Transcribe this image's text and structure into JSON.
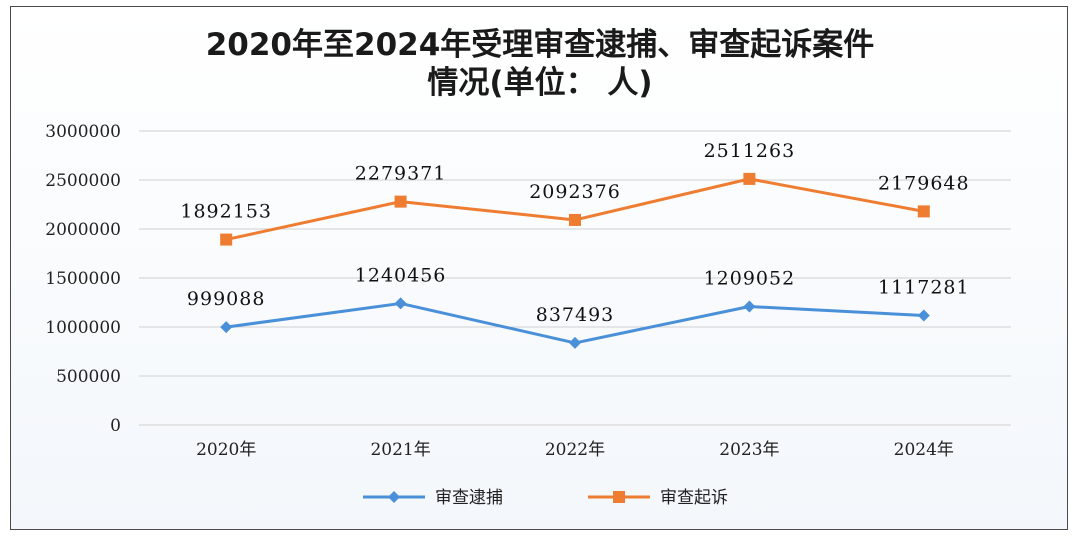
{
  "chart_data": {
    "type": "line",
    "title_lines": [
      "2020年至2024年受理审查逮捕、审查起诉案件",
      "情况(单位： 人)"
    ],
    "categories": [
      "2020年",
      "2021年",
      "2022年",
      "2023年",
      "2024年"
    ],
    "ylim": [
      0,
      3000000
    ],
    "yticks": [
      "0",
      "500000",
      "1000000",
      "1500000",
      "2000000",
      "2500000",
      "3000000"
    ],
    "grid": true,
    "legend_position": "bottom",
    "series": [
      {
        "name": "审查逮捕",
        "values": [
          999088,
          1240456,
          837493,
          1209052,
          1117281
        ],
        "labels": [
          "999088",
          "1240456",
          "837493",
          "1209052",
          "1117281"
        ],
        "color": "#4a90d9",
        "marker": "diamond"
      },
      {
        "name": "审查起诉",
        "values": [
          1892153,
          2279371,
          2092376,
          2511263,
          2179648
        ],
        "labels": [
          "1892153",
          "2279371",
          "2092376",
          "2511263",
          "2179648"
        ],
        "color": "#ee7d31",
        "marker": "square"
      }
    ]
  }
}
